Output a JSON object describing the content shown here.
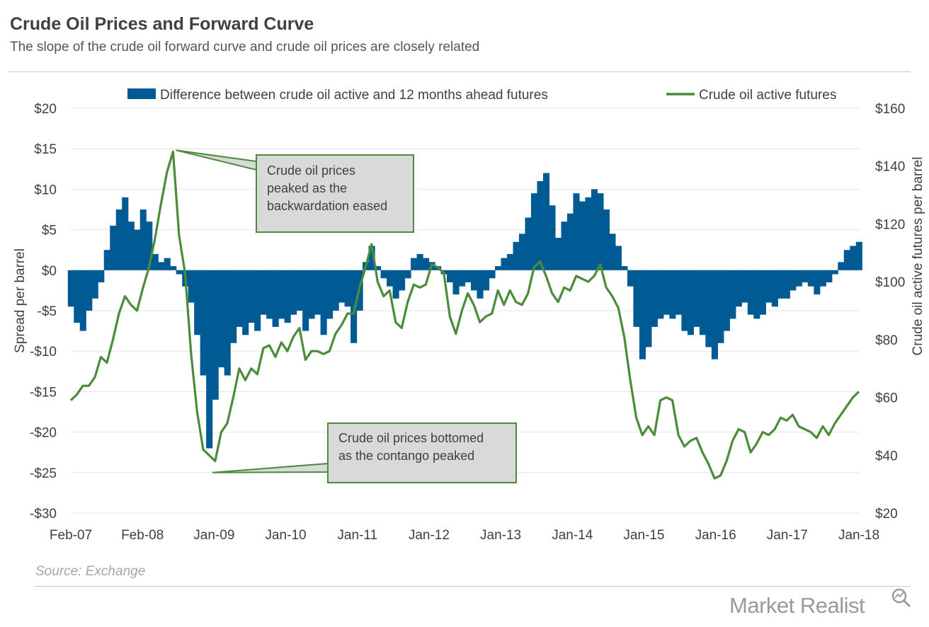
{
  "header": {
    "title": "Crude Oil Prices and Forward Curve",
    "subtitle": "The slope of the crude oil forward curve and crude oil prices are closely related"
  },
  "footer": {
    "source": "Source: Exchange",
    "logo_text": "Market Realist",
    "logo_icon": "magnifier-chart-icon"
  },
  "colors": {
    "spread": "#005b94",
    "price": "#4b8c3a",
    "callout_fill": "#d9d9d9",
    "callout_border": "#4b8c3a",
    "grid": "#e3e3e3"
  },
  "chart_data": {
    "type": "combo",
    "title": "Crude Oil Prices and Forward Curve",
    "subtitle": "The slope of the crude oil forward curve and crude oil prices are closely related",
    "legend_position": "top",
    "grid": true,
    "x_ticks": [
      "Feb-07",
      "Feb-08",
      "Jan-09",
      "Jan-10",
      "Jan-11",
      "Jan-12",
      "Jan-13",
      "Jan-14",
      "Jan-15",
      "Jan-16",
      "Jan-17",
      "Jan-18"
    ],
    "x_range": [
      "2007-02",
      "2018-01"
    ],
    "left_axis": {
      "label": "Spread per barrel",
      "range": [
        -30,
        20
      ],
      "ticks": [
        20,
        15,
        10,
        5,
        0,
        -5,
        -10,
        -15,
        -20,
        -25,
        -30
      ],
      "tick_labels": [
        "$20",
        "$15",
        "$10",
        "$5",
        "$0",
        "-$5",
        "-$10",
        "-$15",
        "-$20",
        "-$25",
        "-$30"
      ]
    },
    "right_axis": {
      "label": "Crude oil active futures  per barrel",
      "range": [
        20,
        160
      ],
      "ticks": [
        160,
        140,
        120,
        100,
        80,
        60,
        40,
        20
      ],
      "tick_labels": [
        "$160",
        "$140",
        "$120",
        "$100",
        "$80",
        "$60",
        "$40",
        "$20"
      ]
    },
    "series": [
      {
        "name": "Difference between crude oil active and 12 months ahead futures",
        "type": "area",
        "axis": "left",
        "points": [
          [
            "2007-02",
            -4.5
          ],
          [
            "2007-03",
            -6.5
          ],
          [
            "2007-04",
            -7.5
          ],
          [
            "2007-05",
            -5.0
          ],
          [
            "2007-06",
            -3.5
          ],
          [
            "2007-07",
            -1.5
          ],
          [
            "2007-08",
            2.5
          ],
          [
            "2007-09",
            5.5
          ],
          [
            "2007-10",
            7.5
          ],
          [
            "2007-11",
            9.0
          ],
          [
            "2007-12",
            6.0
          ],
          [
            "2008-01",
            5.0
          ],
          [
            "2008-02",
            7.5
          ],
          [
            "2008-03",
            6.0
          ],
          [
            "2008-04",
            2.0
          ],
          [
            "2008-05",
            1.0
          ],
          [
            "2008-06",
            1.5
          ],
          [
            "2008-07",
            0.5
          ],
          [
            "2008-08",
            -0.5
          ],
          [
            "2008-09",
            -2.0
          ],
          [
            "2008-10",
            -4.0
          ],
          [
            "2008-11",
            -8.0
          ],
          [
            "2008-12",
            -13.0
          ],
          [
            "2009-01",
            -22.0
          ],
          [
            "2009-02",
            -16.0
          ],
          [
            "2009-03",
            -12.0
          ],
          [
            "2009-04",
            -13.0
          ],
          [
            "2009-05",
            -9.0
          ],
          [
            "2009-06",
            -7.0
          ],
          [
            "2009-07",
            -8.0
          ],
          [
            "2009-08",
            -6.5
          ],
          [
            "2009-09",
            -7.5
          ],
          [
            "2009-10",
            -5.5
          ],
          [
            "2009-11",
            -6.0
          ],
          [
            "2009-12",
            -7.0
          ],
          [
            "2010-01",
            -6.0
          ],
          [
            "2010-02",
            -6.5
          ],
          [
            "2010-03",
            -5.5
          ],
          [
            "2010-04",
            -5.0
          ],
          [
            "2010-05",
            -7.5
          ],
          [
            "2010-06",
            -6.0
          ],
          [
            "2010-07",
            -5.5
          ],
          [
            "2010-08",
            -8.0
          ],
          [
            "2010-09",
            -6.0
          ],
          [
            "2010-10",
            -5.0
          ],
          [
            "2010-11",
            -4.0
          ],
          [
            "2010-12",
            -4.5
          ],
          [
            "2011-01",
            -9.0
          ],
          [
            "2011-02",
            -5.0
          ],
          [
            "2011-03",
            1.0
          ],
          [
            "2011-04",
            3.0
          ],
          [
            "2011-05",
            0.5
          ],
          [
            "2011-06",
            -1.0
          ],
          [
            "2011-07",
            -2.0
          ],
          [
            "2011-08",
            -3.5
          ],
          [
            "2011-09",
            -2.5
          ],
          [
            "2011-10",
            -1.0
          ],
          [
            "2011-11",
            1.5
          ],
          [
            "2011-12",
            2.0
          ],
          [
            "2012-01",
            1.5
          ],
          [
            "2012-02",
            1.0
          ],
          [
            "2012-03",
            0.5
          ],
          [
            "2012-04",
            -0.5
          ],
          [
            "2012-05",
            -1.5
          ],
          [
            "2012-06",
            -3.0
          ],
          [
            "2012-07",
            -2.0
          ],
          [
            "2012-08",
            -1.5
          ],
          [
            "2012-09",
            -2.5
          ],
          [
            "2012-10",
            -3.5
          ],
          [
            "2012-11",
            -2.5
          ],
          [
            "2012-12",
            -1.0
          ],
          [
            "2013-01",
            0.5
          ],
          [
            "2013-02",
            1.5
          ],
          [
            "2013-03",
            2.0
          ],
          [
            "2013-04",
            3.5
          ],
          [
            "2013-05",
            4.5
          ],
          [
            "2013-06",
            6.5
          ],
          [
            "2013-07",
            9.5
          ],
          [
            "2013-08",
            11.0
          ],
          [
            "2013-09",
            12.0
          ],
          [
            "2013-10",
            8.0
          ],
          [
            "2013-11",
            4.0
          ],
          [
            "2013-12",
            6.0
          ],
          [
            "2014-01",
            7.0
          ],
          [
            "2014-02",
            9.5
          ],
          [
            "2014-03",
            8.5
          ],
          [
            "2014-04",
            9.0
          ],
          [
            "2014-05",
            10.0
          ],
          [
            "2014-06",
            9.5
          ],
          [
            "2014-07",
            7.5
          ],
          [
            "2014-08",
            4.5
          ],
          [
            "2014-09",
            3.0
          ],
          [
            "2014-10",
            0.5
          ],
          [
            "2014-11",
            -2.0
          ],
          [
            "2014-12",
            -7.0
          ],
          [
            "2015-01",
            -11.0
          ],
          [
            "2015-02",
            -9.5
          ],
          [
            "2015-03",
            -7.0
          ],
          [
            "2015-04",
            -6.0
          ],
          [
            "2015-05",
            -5.5
          ],
          [
            "2015-06",
            -6.0
          ],
          [
            "2015-07",
            -5.5
          ],
          [
            "2015-08",
            -7.5
          ],
          [
            "2015-09",
            -8.0
          ],
          [
            "2015-10",
            -7.0
          ],
          [
            "2015-11",
            -8.0
          ],
          [
            "2015-12",
            -9.5
          ],
          [
            "2016-01",
            -11.0
          ],
          [
            "2016-02",
            -9.0
          ],
          [
            "2016-03",
            -7.5
          ],
          [
            "2016-04",
            -6.0
          ],
          [
            "2016-05",
            -4.5
          ],
          [
            "2016-06",
            -4.0
          ],
          [
            "2016-07",
            -5.5
          ],
          [
            "2016-08",
            -6.0
          ],
          [
            "2016-09",
            -5.5
          ],
          [
            "2016-10",
            -4.0
          ],
          [
            "2016-11",
            -4.5
          ],
          [
            "2016-12",
            -3.5
          ],
          [
            "2017-01",
            -3.5
          ],
          [
            "2017-02",
            -2.5
          ],
          [
            "2017-03",
            -2.0
          ],
          [
            "2017-04",
            -1.5
          ],
          [
            "2017-05",
            -2.0
          ],
          [
            "2017-06",
            -3.0
          ],
          [
            "2017-07",
            -2.0
          ],
          [
            "2017-08",
            -1.5
          ],
          [
            "2017-09",
            -0.5
          ],
          [
            "2017-10",
            1.0
          ],
          [
            "2017-11",
            2.5
          ],
          [
            "2017-12",
            3.0
          ],
          [
            "2018-01",
            3.5
          ]
        ]
      },
      {
        "name": "Crude oil active futures",
        "type": "line",
        "axis": "right",
        "points": [
          [
            "2007-02",
            59
          ],
          [
            "2007-03",
            61
          ],
          [
            "2007-04",
            64
          ],
          [
            "2007-05",
            64
          ],
          [
            "2007-06",
            67
          ],
          [
            "2007-07",
            74
          ],
          [
            "2007-08",
            72
          ],
          [
            "2007-09",
            80
          ],
          [
            "2007-10",
            89
          ],
          [
            "2007-11",
            95
          ],
          [
            "2007-12",
            92
          ],
          [
            "2008-01",
            90
          ],
          [
            "2008-02",
            98
          ],
          [
            "2008-03",
            105
          ],
          [
            "2008-04",
            115
          ],
          [
            "2008-05",
            127
          ],
          [
            "2008-06",
            138
          ],
          [
            "2008-07",
            145
          ],
          [
            "2008-08",
            116
          ],
          [
            "2008-09",
            103
          ],
          [
            "2008-10",
            75
          ],
          [
            "2008-11",
            55
          ],
          [
            "2008-12",
            42
          ],
          [
            "2009-01",
            40
          ],
          [
            "2009-02",
            38
          ],
          [
            "2009-03",
            48
          ],
          [
            "2009-04",
            51
          ],
          [
            "2009-05",
            60
          ],
          [
            "2009-06",
            70
          ],
          [
            "2009-07",
            66
          ],
          [
            "2009-08",
            70
          ],
          [
            "2009-09",
            68
          ],
          [
            "2009-10",
            77
          ],
          [
            "2009-11",
            78
          ],
          [
            "2009-12",
            74
          ],
          [
            "2010-01",
            79
          ],
          [
            "2010-02",
            76
          ],
          [
            "2010-03",
            81
          ],
          [
            "2010-04",
            84
          ],
          [
            "2010-05",
            73
          ],
          [
            "2010-06",
            76
          ],
          [
            "2010-07",
            76
          ],
          [
            "2010-08",
            75
          ],
          [
            "2010-09",
            76
          ],
          [
            "2010-10",
            82
          ],
          [
            "2010-11",
            85
          ],
          [
            "2010-12",
            89
          ],
          [
            "2011-01",
            89
          ],
          [
            "2011-02",
            98
          ],
          [
            "2011-03",
            105
          ],
          [
            "2011-04",
            113
          ],
          [
            "2011-05",
            100
          ],
          [
            "2011-06",
            95
          ],
          [
            "2011-07",
            97
          ],
          [
            "2011-08",
            86
          ],
          [
            "2011-09",
            84
          ],
          [
            "2011-10",
            93
          ],
          [
            "2011-11",
            99
          ],
          [
            "2011-12",
            98
          ],
          [
            "2012-01",
            99
          ],
          [
            "2012-02",
            106
          ],
          [
            "2012-03",
            105
          ],
          [
            "2012-04",
            103
          ],
          [
            "2012-05",
            88
          ],
          [
            "2012-06",
            82
          ],
          [
            "2012-07",
            90
          ],
          [
            "2012-08",
            96
          ],
          [
            "2012-09",
            92
          ],
          [
            "2012-10",
            86
          ],
          [
            "2012-11",
            88
          ],
          [
            "2012-12",
            89
          ],
          [
            "2013-01",
            97
          ],
          [
            "2013-02",
            92
          ],
          [
            "2013-03",
            97
          ],
          [
            "2013-04",
            93
          ],
          [
            "2013-05",
            92
          ],
          [
            "2013-06",
            96
          ],
          [
            "2013-07",
            105
          ],
          [
            "2013-08",
            107
          ],
          [
            "2013-09",
            102
          ],
          [
            "2013-10",
            96
          ],
          [
            "2013-11",
            93
          ],
          [
            "2013-12",
            98
          ],
          [
            "2014-01",
            97
          ],
          [
            "2014-02",
            102
          ],
          [
            "2014-03",
            101
          ],
          [
            "2014-04",
            100
          ],
          [
            "2014-05",
            102
          ],
          [
            "2014-06",
            106
          ],
          [
            "2014-07",
            98
          ],
          [
            "2014-08",
            95
          ],
          [
            "2014-09",
            91
          ],
          [
            "2014-10",
            81
          ],
          [
            "2014-11",
            66
          ],
          [
            "2014-12",
            53
          ],
          [
            "2015-01",
            47
          ],
          [
            "2015-02",
            50
          ],
          [
            "2015-03",
            47
          ],
          [
            "2015-04",
            59
          ],
          [
            "2015-05",
            60
          ],
          [
            "2015-06",
            59
          ],
          [
            "2015-07",
            47
          ],
          [
            "2015-08",
            43
          ],
          [
            "2015-09",
            45
          ],
          [
            "2015-10",
            46
          ],
          [
            "2015-11",
            41
          ],
          [
            "2015-12",
            37
          ],
          [
            "2016-01",
            32
          ],
          [
            "2016-02",
            33
          ],
          [
            "2016-03",
            38
          ],
          [
            "2016-04",
            45
          ],
          [
            "2016-05",
            49
          ],
          [
            "2016-06",
            48
          ],
          [
            "2016-07",
            41
          ],
          [
            "2016-08",
            44
          ],
          [
            "2016-09",
            48
          ],
          [
            "2016-10",
            47
          ],
          [
            "2016-11",
            49
          ],
          [
            "2016-12",
            53
          ],
          [
            "2017-01",
            52
          ],
          [
            "2017-02",
            54
          ],
          [
            "2017-03",
            50
          ],
          [
            "2017-04",
            49
          ],
          [
            "2017-05",
            48
          ],
          [
            "2017-06",
            46
          ],
          [
            "2017-07",
            50
          ],
          [
            "2017-08",
            47
          ],
          [
            "2017-09",
            51
          ],
          [
            "2017-10",
            54
          ],
          [
            "2017-11",
            57
          ],
          [
            "2017-12",
            60
          ],
          [
            "2018-01",
            62
          ]
        ]
      }
    ],
    "annotations": [
      {
        "text": [
          "Crude oil prices",
          "peaked as the",
          "backwardation eased"
        ],
        "points_to": [
          "2008-07",
          145
        ]
      },
      {
        "text": [
          "Crude oil prices bottomed",
          "as the contango peaked"
        ],
        "points_to": [
          "2009-02",
          -25
        ]
      }
    ]
  }
}
